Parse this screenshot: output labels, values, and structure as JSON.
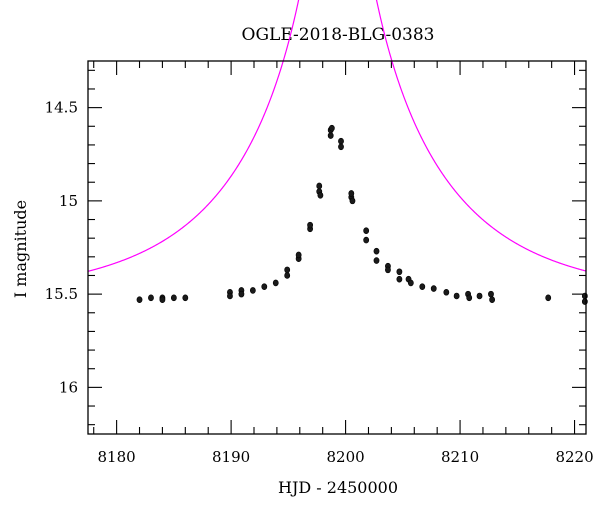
{
  "chart_data": {
    "type": "scatter",
    "title": "OGLE-2018-BLG-0383",
    "xlabel": "HJD - 2450000",
    "ylabel": "I magnitude",
    "xlim": [
      8177.5,
      8221
    ],
    "ylim": [
      16.25,
      14.25
    ],
    "y_inverted": true,
    "x_ticks": [
      8180,
      8190,
      8200,
      8210,
      8220
    ],
    "x_minor_step": 2,
    "y_ticks": [
      14.5,
      15,
      15.5,
      16
    ],
    "y_tick_labels": [
      "14.5",
      "15",
      "15.5",
      "16"
    ],
    "y_minor_step": 0.1,
    "grid": false,
    "legend": "none",
    "series": [
      {
        "type": "points",
        "color": "#000000",
        "x": [
          8182.0,
          8183.0,
          8184.0,
          8184.0,
          8185.0,
          8186.0,
          8189.9,
          8189.9,
          8190.9,
          8190.9,
          8191.9,
          8192.9,
          8193.9,
          8194.9,
          8194.9,
          8195.9,
          8195.9,
          8196.9,
          8196.9,
          8197.7,
          8197.7,
          8197.8,
          8198.7,
          8198.7,
          8198.8,
          8199.6,
          8199.6,
          8200.5,
          8200.5,
          8200.6,
          8201.8,
          8201.8,
          8202.7,
          8202.7,
          8203.7,
          8203.7,
          8204.7,
          8204.7,
          8205.5,
          8205.7,
          8206.7,
          8207.7,
          8208.8,
          8209.7,
          8210.7,
          8210.8,
          8211.7,
          8212.7,
          8212.8,
          8217.7,
          8220.9,
          8220.9
        ],
        "y": [
          15.53,
          15.52,
          15.52,
          15.53,
          15.52,
          15.52,
          15.49,
          15.51,
          15.48,
          15.5,
          15.48,
          15.46,
          15.44,
          15.4,
          15.37,
          15.31,
          15.29,
          15.15,
          15.13,
          14.95,
          14.92,
          14.97,
          14.65,
          14.62,
          14.61,
          14.68,
          14.71,
          14.98,
          14.96,
          15.0,
          15.16,
          15.21,
          15.27,
          15.32,
          15.35,
          15.37,
          15.38,
          15.42,
          15.42,
          15.44,
          15.46,
          15.47,
          15.49,
          15.51,
          15.5,
          15.52,
          15.51,
          15.5,
          15.53,
          15.52,
          15.51,
          15.54
        ]
      },
      {
        "type": "line",
        "color": "#ff00ff",
        "model": {
          "t0": 8199.3,
          "u0": 0.055,
          "tE": 15.0,
          "baseline": 15.524
        }
      }
    ]
  }
}
